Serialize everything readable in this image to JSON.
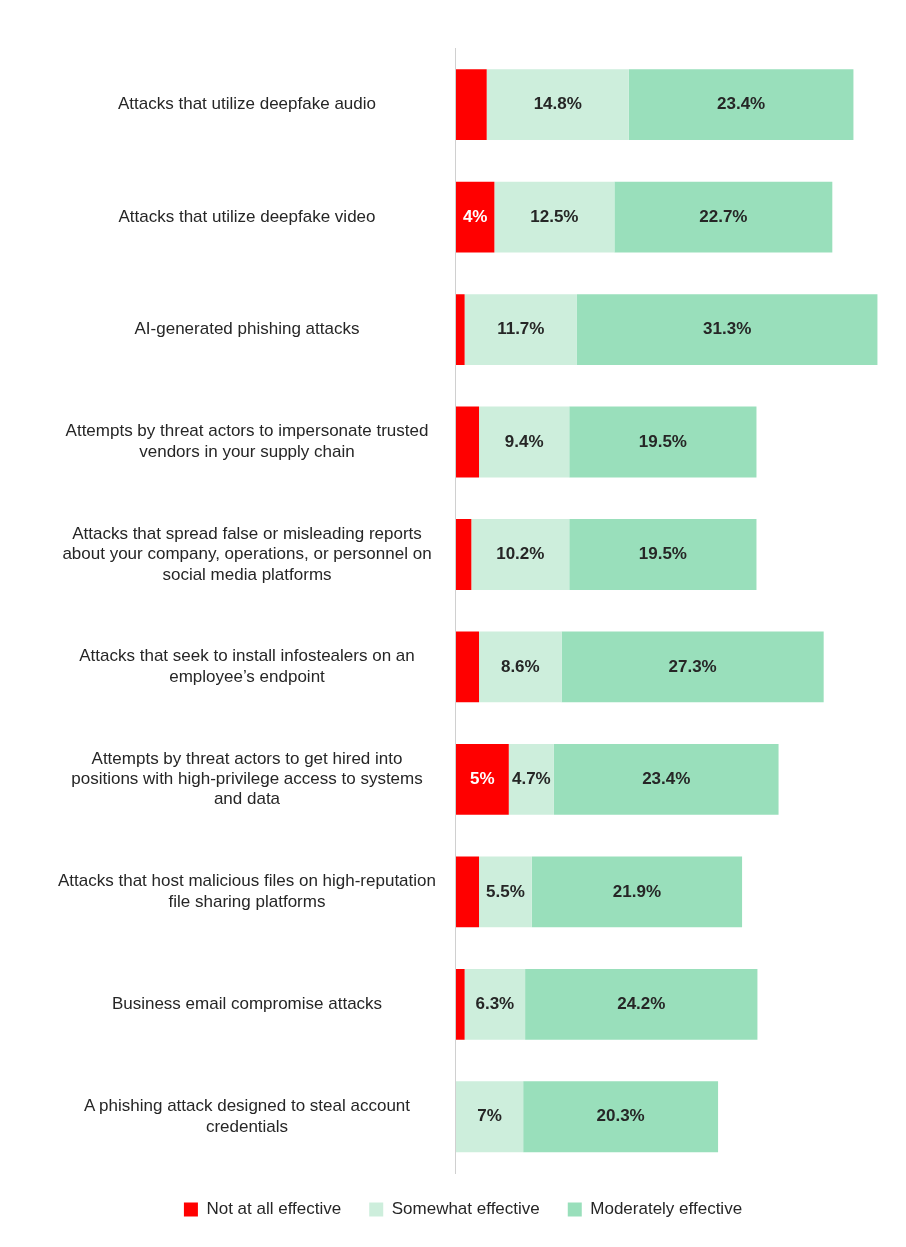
{
  "chart_data": {
    "type": "bar",
    "orientation": "horizontal",
    "stacked": true,
    "legend": "bottom",
    "categories": [
      "Attacks that utilize deepfake audio",
      "Attacks that utilize deepfake video",
      "AI-generated phishing attacks",
      "Attempts by threat actors to impersonate trusted vendors in your supply chain",
      "Attacks that spread false or misleading reports about your company, operations, or personnel on social media platforms",
      "Attacks that seek to install infostealers on an employee’s endpoint",
      "Attempts by threat actors to get hired into positions with high-privilege access to systems and data",
      "Attacks that host malicious files on high-reputation file sharing platforms",
      "Business email compromise attacks",
      "A phishing attack designed to steal account credentials"
    ],
    "series": [
      {
        "name": "Not at all effective",
        "color": "#ff0000",
        "values": [
          3.2,
          4,
          0.9,
          2.4,
          1.6,
          2.4,
          5.5,
          2.4,
          0.9,
          0
        ],
        "value_labels": [
          null,
          "4%",
          null,
          null,
          null,
          null,
          "5%",
          null,
          null,
          null
        ]
      },
      {
        "name": "Somewhat effective",
        "color": "#cdeedc",
        "values": [
          14.8,
          12.5,
          11.7,
          9.4,
          10.2,
          8.6,
          4.7,
          5.5,
          6.3,
          7
        ],
        "value_labels": [
          "14.8%",
          "12.5%",
          "11.7%",
          "9.4%",
          "10.2%",
          "8.6%",
          "4.7%",
          "5.5%",
          "6.3%",
          "7%"
        ]
      },
      {
        "name": "Moderately effective",
        "color": "#99dfbb",
        "values": [
          23.4,
          22.7,
          31.3,
          19.5,
          19.5,
          27.3,
          23.4,
          21.9,
          24.2,
          20.3
        ],
        "value_labels": [
          "23.4%",
          "22.7%",
          "31.3%",
          "19.5%",
          "19.5%",
          "27.3%",
          "23.4%",
          "21.9%",
          "24.2%",
          "20.3%"
        ]
      }
    ]
  }
}
